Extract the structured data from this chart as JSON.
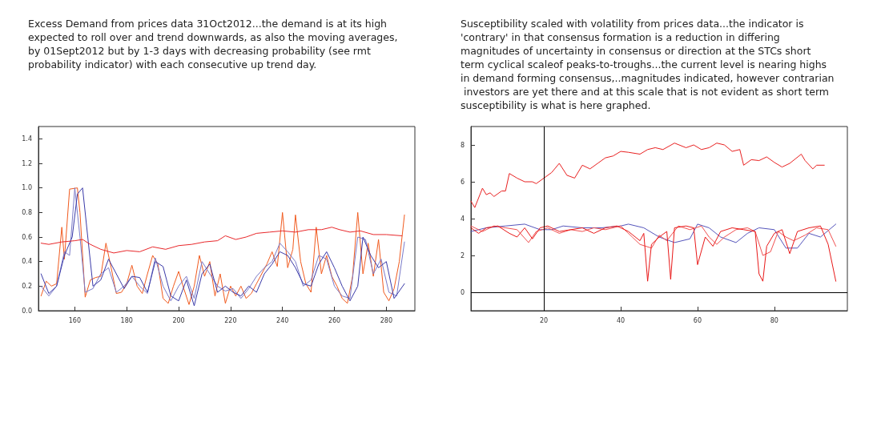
{
  "chart_data": [
    {
      "type": "line",
      "title": "Excess Demand from prices data 31Oct2012...the demand is at its high expected to roll over and trend downwards, as also the moving averages, by 01Sept2012 but by 1-3 days with decreasing probability (see rmt probability indicator) with each consecutive up trend day.",
      "xlim": [
        146,
        291
      ],
      "xticks": [
        160,
        180,
        200,
        220,
        240,
        260,
        280
      ],
      "ylim": [
        0,
        1.5
      ],
      "yticks": [
        {
          "value": 0,
          "label": "0.0"
        },
        0.2,
        0.4,
        0.6,
        0.8,
        {
          "value": 1,
          "label": "1.0"
        },
        1.2,
        1.4
      ],
      "grid": false,
      "marker": "none",
      "line_style": "solid",
      "series": [
        {
          "color": "#f05a1e",
          "x": [
            147,
            149,
            151,
            153,
            155,
            156,
            158,
            161,
            162,
            164,
            166,
            168,
            170,
            172,
            174,
            176,
            178,
            180,
            182,
            184,
            186,
            188,
            190,
            192,
            194,
            196,
            198,
            200,
            202,
            204,
            206,
            208,
            210,
            212,
            214,
            216,
            218,
            220,
            222,
            224,
            226,
            228,
            230,
            232,
            234,
            236,
            238,
            240,
            242,
            244,
            245,
            247,
            249,
            251,
            253,
            255,
            257,
            259,
            261,
            263,
            265,
            267,
            269,
            271,
            273,
            275,
            277,
            279,
            281,
            283,
            285,
            287
          ],
          "values": [
            0.12,
            0.24,
            0.2,
            0.22,
            0.68,
            0.42,
            0.99,
            1.0,
            0.8,
            0.11,
            0.25,
            0.27,
            0.28,
            0.55,
            0.35,
            0.14,
            0.15,
            0.22,
            0.37,
            0.2,
            0.14,
            0.3,
            0.45,
            0.38,
            0.1,
            0.06,
            0.2,
            0.32,
            0.18,
            0.05,
            0.2,
            0.45,
            0.28,
            0.4,
            0.12,
            0.3,
            0.06,
            0.2,
            0.12,
            0.2,
            0.1,
            0.14,
            0.22,
            0.3,
            0.38,
            0.48,
            0.36,
            0.8,
            0.35,
            0.5,
            0.78,
            0.4,
            0.22,
            0.15,
            0.68,
            0.3,
            0.45,
            0.28,
            0.2,
            0.1,
            0.06,
            0.28,
            0.8,
            0.3,
            0.55,
            0.28,
            0.58,
            0.15,
            0.08,
            0.18,
            0.4,
            0.78
          ]
        },
        {
          "color": "#7a7ac8",
          "x": [
            147,
            150,
            153,
            156,
            158,
            160,
            162,
            164,
            167,
            170,
            173,
            176,
            179,
            182,
            185,
            188,
            191,
            194,
            197,
            200,
            203,
            206,
            209,
            212,
            215,
            218,
            221,
            224,
            227,
            230,
            233,
            236,
            239,
            242,
            245,
            248,
            251,
            254,
            257,
            260,
            263,
            266,
            269,
            272,
            275,
            278,
            281,
            284,
            287
          ],
          "values": [
            0.2,
            0.12,
            0.2,
            0.48,
            0.45,
            1.0,
            0.6,
            0.15,
            0.18,
            0.3,
            0.35,
            0.15,
            0.2,
            0.28,
            0.2,
            0.14,
            0.43,
            0.2,
            0.08,
            0.2,
            0.28,
            0.1,
            0.4,
            0.3,
            0.2,
            0.16,
            0.18,
            0.1,
            0.18,
            0.28,
            0.35,
            0.4,
            0.55,
            0.48,
            0.4,
            0.2,
            0.25,
            0.45,
            0.42,
            0.2,
            0.12,
            0.1,
            0.6,
            0.58,
            0.3,
            0.42,
            0.15,
            0.12,
            0.56
          ]
        },
        {
          "color": "#3a3aa8",
          "x": [
            147,
            150,
            153,
            156,
            159,
            161,
            163,
            165,
            167,
            170,
            173,
            176,
            179,
            182,
            185,
            188,
            191,
            194,
            197,
            200,
            203,
            206,
            209,
            212,
            215,
            218,
            221,
            224,
            227,
            230,
            233,
            236,
            239,
            242,
            245,
            248,
            251,
            254,
            257,
            260,
            263,
            266,
            269,
            271,
            274,
            277,
            280,
            283,
            287
          ],
          "values": [
            0.3,
            0.14,
            0.2,
            0.45,
            0.6,
            0.95,
            1.0,
            0.6,
            0.2,
            0.25,
            0.42,
            0.3,
            0.18,
            0.28,
            0.27,
            0.15,
            0.4,
            0.36,
            0.12,
            0.08,
            0.25,
            0.04,
            0.3,
            0.38,
            0.15,
            0.2,
            0.15,
            0.12,
            0.2,
            0.15,
            0.3,
            0.38,
            0.48,
            0.45,
            0.35,
            0.22,
            0.2,
            0.38,
            0.48,
            0.35,
            0.2,
            0.08,
            0.2,
            0.6,
            0.45,
            0.35,
            0.4,
            0.1,
            0.22
          ]
        },
        {
          "color": "#e8282b",
          "x": [
            147,
            150,
            155,
            160,
            163,
            166,
            170,
            175,
            180,
            185,
            190,
            195,
            200,
            205,
            210,
            215,
            218,
            222,
            226,
            230,
            235,
            240,
            245,
            250,
            255,
            259,
            262,
            266,
            270,
            275,
            280,
            286
          ],
          "values": [
            0.55,
            0.54,
            0.56,
            0.57,
            0.58,
            0.54,
            0.5,
            0.47,
            0.49,
            0.48,
            0.52,
            0.5,
            0.53,
            0.54,
            0.56,
            0.57,
            0.61,
            0.58,
            0.6,
            0.63,
            0.64,
            0.65,
            0.64,
            0.66,
            0.66,
            0.68,
            0.66,
            0.64,
            0.65,
            0.62,
            0.62,
            0.61
          ]
        }
      ]
    },
    {
      "type": "line",
      "title": "Susceptibility scaled with volatility from prices data...the indicator is 'contrary' in that consensus formation is a reduction in differing magnitudes of uncertainty in consensus or direction at the STCs short term cyclical scaleof peaks-to-troughs...the current level is nearing highs in demand forming consensus,..magnitudes indicated, however contrarian investors are yet there and at this scale that is not evident as short term susceptibility is what is here graphed.",
      "xlim": [
        1,
        99
      ],
      "xticks": [
        20,
        40,
        60,
        80
      ],
      "ylim": [
        -1,
        9
      ],
      "yticks": [
        0,
        2,
        4,
        6,
        8
      ],
      "grid": false,
      "marker": "none",
      "line_style": "solid",
      "ref_lines": [
        {
          "axis": "x",
          "value": 20,
          "color": "#000000"
        },
        {
          "axis": "y",
          "value": 0,
          "color": "#000000"
        }
      ],
      "series": [
        {
          "color": "#e82020",
          "x": [
            1,
            2,
            4,
            5,
            6,
            7,
            9,
            10,
            11,
            13,
            15,
            17,
            18,
            20,
            22,
            24,
            26,
            28,
            30,
            32,
            34,
            36,
            38,
            40,
            42,
            45,
            47,
            49,
            51,
            54,
            57,
            59,
            61,
            63,
            65,
            67,
            69,
            71,
            72,
            74,
            76,
            78,
            80,
            82,
            84,
            87,
            88,
            90,
            91,
            93
          ],
          "values": [
            4.95,
            4.6,
            5.65,
            5.3,
            5.4,
            5.2,
            5.5,
            5.5,
            6.45,
            6.2,
            6.0,
            6.0,
            5.9,
            6.2,
            6.5,
            7.0,
            6.35,
            6.2,
            6.9,
            6.7,
            7.0,
            7.3,
            7.4,
            7.65,
            7.6,
            7.5,
            7.75,
            7.85,
            7.75,
            8.1,
            7.85,
            8.0,
            7.75,
            7.85,
            8.1,
            8.0,
            7.65,
            7.75,
            6.9,
            7.2,
            7.15,
            7.35,
            7.05,
            6.8,
            7.0,
            7.5,
            7.15,
            6.7,
            6.9,
            6.9
          ]
        },
        {
          "color": "#5555bb",
          "x": [
            1,
            5,
            10,
            15,
            19,
            22,
            25,
            30,
            35,
            40,
            42,
            46,
            50,
            54,
            58,
            60,
            63,
            66,
            70,
            73,
            76,
            80,
            83,
            86,
            89,
            92,
            96
          ],
          "values": [
            3.3,
            3.5,
            3.6,
            3.7,
            3.4,
            3.4,
            3.6,
            3.5,
            3.5,
            3.6,
            3.7,
            3.5,
            3.0,
            2.7,
            2.9,
            3.7,
            3.5,
            3.0,
            2.7,
            3.2,
            3.5,
            3.4,
            2.4,
            2.4,
            3.2,
            3.0,
            3.7
          ]
        },
        {
          "color": "#f05050",
          "x": [
            1,
            4,
            7,
            10,
            13,
            16,
            18,
            21,
            24,
            27,
            30,
            33,
            36,
            40,
            43,
            45,
            48,
            50,
            52,
            55,
            58,
            61,
            63,
            65,
            67,
            70,
            73,
            75,
            77,
            79,
            81,
            83,
            85,
            88,
            91,
            94,
            96
          ],
          "values": [
            3.6,
            3.3,
            3.6,
            3.5,
            3.4,
            2.7,
            3.3,
            3.5,
            3.2,
            3.4,
            3.3,
            3.5,
            3.4,
            3.6,
            3.0,
            2.6,
            2.4,
            3.1,
            2.8,
            3.6,
            3.4,
            3.6,
            3.0,
            2.6,
            3.0,
            3.4,
            3.5,
            3.3,
            2.0,
            2.2,
            3.3,
            3.0,
            2.8,
            3.1,
            3.5,
            3.4,
            2.5
          ]
        },
        {
          "color": "#e81818",
          "x": [
            1,
            3,
            5,
            8,
            11,
            13,
            15,
            17,
            19,
            21,
            24,
            27,
            30,
            33,
            36,
            39,
            42,
            45,
            46,
            47,
            48,
            50,
            52,
            53,
            54,
            57,
            59,
            60,
            62,
            64,
            66,
            69,
            72,
            75,
            76,
            77,
            78,
            80,
            82,
            84,
            86,
            89,
            92,
            94,
            96
          ],
          "values": [
            3.5,
            3.2,
            3.5,
            3.6,
            3.2,
            3.0,
            3.5,
            2.9,
            3.5,
            3.6,
            3.3,
            3.4,
            3.5,
            3.2,
            3.5,
            3.6,
            3.3,
            2.8,
            3.2,
            0.6,
            2.6,
            3.0,
            3.3,
            0.7,
            3.5,
            3.6,
            3.5,
            1.5,
            3.0,
            2.5,
            3.3,
            3.5,
            3.4,
            3.3,
            1.0,
            0.6,
            2.5,
            3.2,
            3.4,
            2.1,
            3.3,
            3.5,
            3.6,
            2.6,
            0.6
          ]
        }
      ]
    }
  ]
}
